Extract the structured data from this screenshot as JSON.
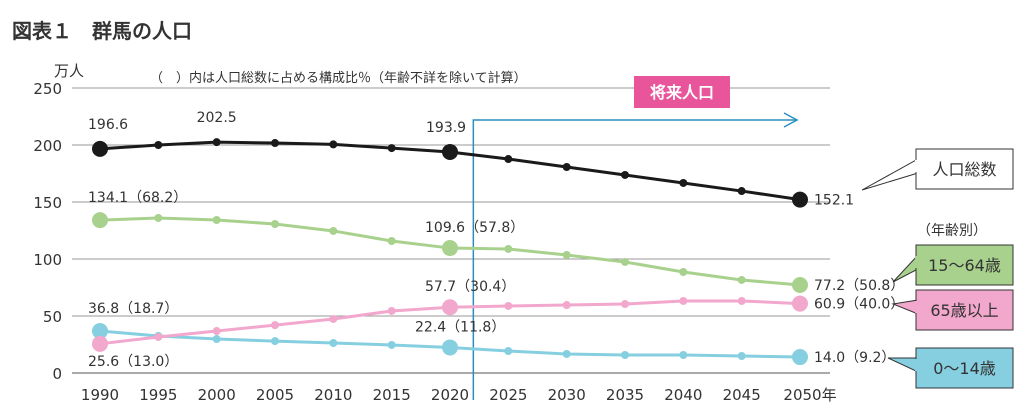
{
  "chart_data": {
    "type": "line",
    "title": "図表１　群馬の人口",
    "note": "（　）内は人口総数に占める構成比％（年齢不詳を除いて計算）",
    "yunit": "万人",
    "ylim": [
      0,
      250
    ],
    "yticks": [
      "0",
      "50",
      "100",
      "150",
      "200",
      "250"
    ],
    "x": [
      1990,
      1995,
      2000,
      2005,
      2010,
      2015,
      2020,
      2025,
      2030,
      2035,
      2040,
      2045,
      2050
    ],
    "xticks": [
      "1990",
      "1995",
      "2000",
      "2005",
      "2010",
      "2015",
      "2020",
      "2025",
      "2030",
      "2035",
      "2040",
      "2045",
      "2050年"
    ],
    "grid": "horizontal",
    "future_label": "将来人口",
    "future_start": 2022,
    "age_group_heading": "（年齢別）",
    "series": [
      {
        "name": "人口総数",
        "color": "#1a1a1a",
        "values": [
          196.6,
          200.0,
          202.5,
          201.7,
          200.5,
          197.3,
          193.9,
          187.7,
          180.7,
          173.7,
          166.7,
          159.6,
          152.1
        ],
        "labels": [
          {
            "x": 1990,
            "text": "196.6"
          },
          {
            "x": 2000,
            "text": "202.5"
          },
          {
            "x": 2020,
            "text": "193.9"
          },
          {
            "x": 2050,
            "text": "152.1"
          }
        ]
      },
      {
        "name": "15〜64歳",
        "color": "#a9d18e",
        "values": [
          134.1,
          136.0,
          134.2,
          130.7,
          124.6,
          115.8,
          109.6,
          108.8,
          103.5,
          97.4,
          88.6,
          81.6,
          77.2
        ],
        "labels": [
          {
            "x": 1990,
            "text": "134.1（68.2）"
          },
          {
            "x": 2020,
            "text": "109.6（57.8）"
          },
          {
            "x": 2050,
            "text": "77.2（50.8）"
          }
        ]
      },
      {
        "name": "65歳以上",
        "color": "#f2a7cd",
        "values": [
          25.6,
          31.6,
          36.8,
          42.0,
          47.4,
          54.4,
          57.7,
          58.8,
          59.6,
          60.5,
          63.2,
          63.2,
          60.9
        ],
        "labels": [
          {
            "x": 1990,
            "text": "25.6（13.0）"
          },
          {
            "x": 2020,
            "text": "57.7（30.4）"
          },
          {
            "x": 2050,
            "text": "60.9（40.0）"
          }
        ]
      },
      {
        "name": "0〜14歳",
        "color": "#86cfe0",
        "values": [
          36.8,
          32.5,
          29.8,
          28.0,
          26.3,
          24.6,
          22.4,
          19.3,
          16.7,
          15.8,
          15.8,
          14.9,
          14.0
        ],
        "labels": [
          {
            "x": 1990,
            "text": "36.8（18.7）"
          },
          {
            "x": 2020,
            "text": "22.4（11.8）"
          },
          {
            "x": 2050,
            "text": "14.0（9.2）"
          }
        ]
      }
    ]
  }
}
